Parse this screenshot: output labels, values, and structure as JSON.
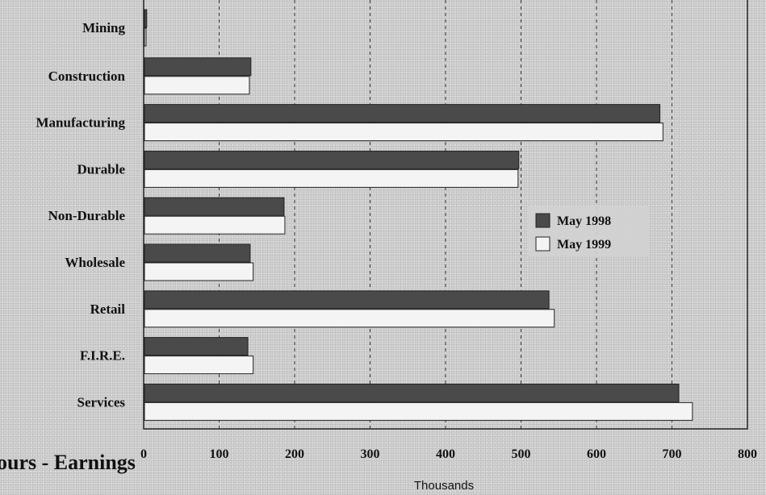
{
  "chart_data": {
    "type": "bar",
    "orientation": "horizontal",
    "categories": [
      "Mining",
      "Construction",
      "Manufacturing",
      "Durable",
      "Non-Durable",
      "Wholesale",
      "Retail",
      "F.I.R.E.",
      "Services"
    ],
    "series": [
      {
        "name": "May 1998",
        "color": "#4a4a4a",
        "values": [
          3,
          141,
          683,
          496,
          185,
          140,
          536,
          137,
          708
        ]
      },
      {
        "name": "May 1999",
        "color": "#f4f4f4",
        "values": [
          2,
          139,
          687,
          495,
          186,
          144,
          543,
          144,
          726
        ]
      }
    ],
    "xlim": [
      0,
      800
    ],
    "x_ticks": [
      "0",
      "100",
      "200",
      "300",
      "400",
      "500",
      "600",
      "700",
      "800"
    ],
    "xlabel": "Thousands",
    "grid": "vertical dashed",
    "legend_position": "right-middle"
  },
  "footer": {
    "title_fragment": "ours - Earnings"
  }
}
